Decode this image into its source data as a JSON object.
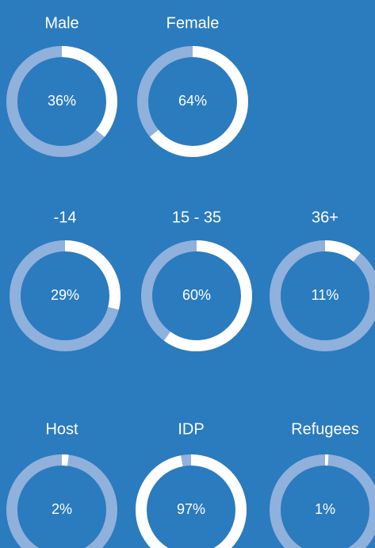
{
  "chart_data": [
    {
      "type": "donut",
      "title": "Male",
      "values": [
        36
      ],
      "value_labels": [
        "36%"
      ]
    },
    {
      "type": "donut",
      "title": "Female",
      "values": [
        64
      ],
      "value_labels": [
        "64%"
      ]
    },
    {
      "type": "donut",
      "title": "-14",
      "values": [
        29
      ],
      "value_labels": [
        "29%"
      ]
    },
    {
      "type": "donut",
      "title": "15 - 35",
      "values": [
        60
      ],
      "value_labels": [
        "60%"
      ]
    },
    {
      "type": "donut",
      "title": "36+",
      "values": [
        11
      ],
      "value_labels": [
        "11%"
      ]
    },
    {
      "type": "donut",
      "title": "Host",
      "values": [
        2
      ],
      "value_labels": [
        "2%"
      ]
    },
    {
      "type": "donut",
      "title": "IDP",
      "values": [
        97
      ],
      "value_labels": [
        "97%"
      ]
    },
    {
      "type": "donut",
      "title": "Refugees",
      "values": [
        1
      ],
      "value_labels": [
        "1%"
      ]
    }
  ]
}
